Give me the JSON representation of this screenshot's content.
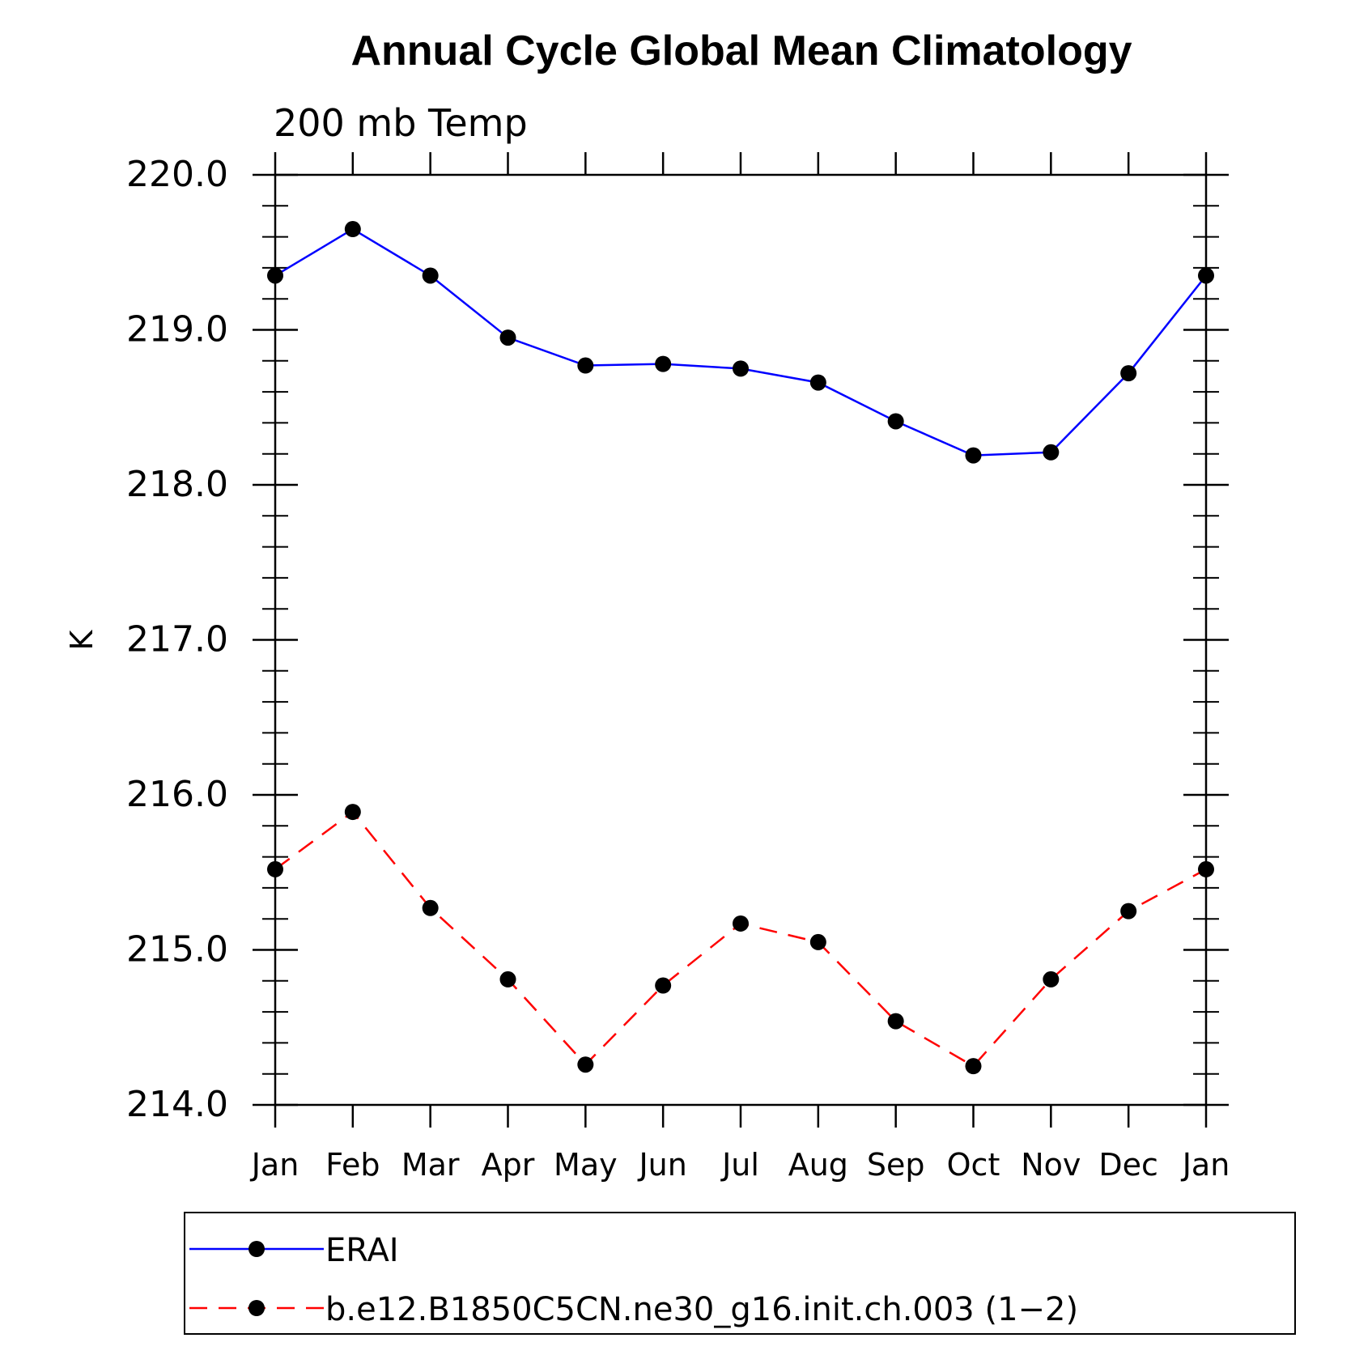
{
  "chart_data": {
    "type": "line",
    "title": "Annual Cycle Global Mean Climatology",
    "subtitle": "200 mb Temp",
    "ylabel": "K",
    "xlabel": "",
    "categories": [
      "Jan",
      "Feb",
      "Mar",
      "Apr",
      "May",
      "Jun",
      "Jul",
      "Aug",
      "Sep",
      "Oct",
      "Nov",
      "Dec",
      "Jan"
    ],
    "ylim": [
      214.0,
      220.0
    ],
    "ytick_labels": [
      "214.0",
      "215.0",
      "216.0",
      "217.0",
      "218.0",
      "219.0",
      "220.0"
    ],
    "ytick_values": [
      214.0,
      215.0,
      216.0,
      217.0,
      218.0,
      219.0,
      220.0
    ],
    "grid": false,
    "legend_position": "bottom",
    "series": [
      {
        "name": "ERAI",
        "color": "#0000ff",
        "dash": "solid",
        "values": [
          219.35,
          219.65,
          219.35,
          218.95,
          218.77,
          218.78,
          218.75,
          218.66,
          218.41,
          218.19,
          218.21,
          218.72,
          219.35
        ]
      },
      {
        "name": "b.e12.B1850C5CN.ne30_g16.init.ch.003 (1−2)",
        "color": "#ff0000",
        "dash": "dashed",
        "values": [
          215.52,
          215.89,
          215.27,
          214.81,
          214.26,
          214.77,
          215.17,
          215.05,
          214.54,
          214.25,
          214.81,
          215.25,
          215.52
        ]
      }
    ]
  }
}
